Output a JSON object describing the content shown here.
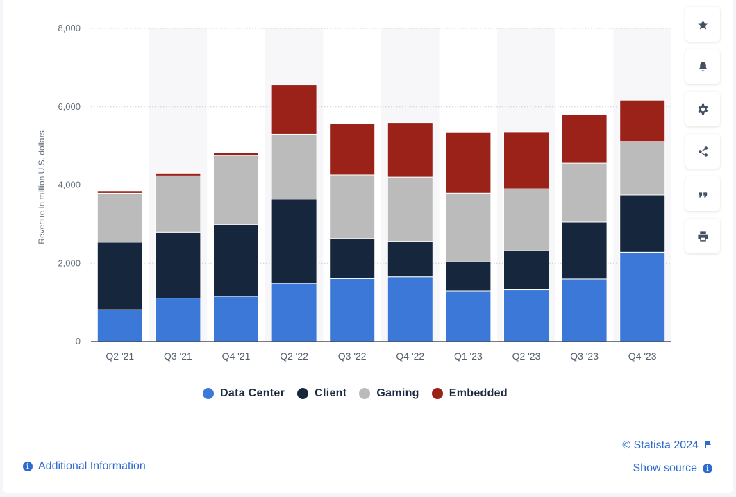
{
  "chart_data": {
    "type": "bar",
    "stacked": true,
    "title": "",
    "xlabel": "",
    "ylabel": "Revenue in million U.S. dollars",
    "ylim": [
      0,
      8000
    ],
    "yticks": [
      0,
      2000,
      4000,
      6000,
      8000
    ],
    "ytick_labels": [
      "0",
      "2,000",
      "4,000",
      "6,000",
      "8,000"
    ],
    "grid": true,
    "legend_position": "bottom",
    "categories": [
      "Q2 '21",
      "Q3 '21",
      "Q4 '21",
      "Q2 '22",
      "Q3 '22",
      "Q4 '22",
      "Q1 '23",
      "Q2 '23",
      "Q3 '23",
      "Q4 '23"
    ],
    "series": [
      {
        "name": "Data Center",
        "color": "#3b78d8",
        "values": [
          813,
          1108,
          1155,
          1489,
          1609,
          1655,
          1295,
          1321,
          1598,
          2282
        ]
      },
      {
        "name": "Client",
        "color": "#16263d",
        "values": [
          1727,
          1690,
          1838,
          2152,
          1018,
          903,
          739,
          998,
          1453,
          1461
        ]
      },
      {
        "name": "Gaming",
        "color": "#bbbbbb",
        "values": [
          1249,
          1435,
          1763,
          1655,
          1631,
          1644,
          1757,
          1581,
          1506,
          1368
        ]
      },
      {
        "name": "Embedded",
        "color": "#9b2219",
        "values": [
          64,
          72,
          70,
          1257,
          1303,
          1393,
          1562,
          1459,
          1243,
          1059
        ]
      }
    ]
  },
  "toolbar": {
    "buttons": [
      {
        "name": "favorite-button",
        "icon": "star-icon"
      },
      {
        "name": "notification-button",
        "icon": "bell-icon"
      },
      {
        "name": "settings-button",
        "icon": "gear-icon"
      },
      {
        "name": "share-button",
        "icon": "share-icon"
      },
      {
        "name": "cite-button",
        "icon": "quote-icon"
      },
      {
        "name": "print-button",
        "icon": "print-icon"
      }
    ]
  },
  "footer": {
    "additional_info": "Additional Information",
    "copyright": "© Statista 2024",
    "show_source": "Show source",
    "info_glyph": "i"
  }
}
